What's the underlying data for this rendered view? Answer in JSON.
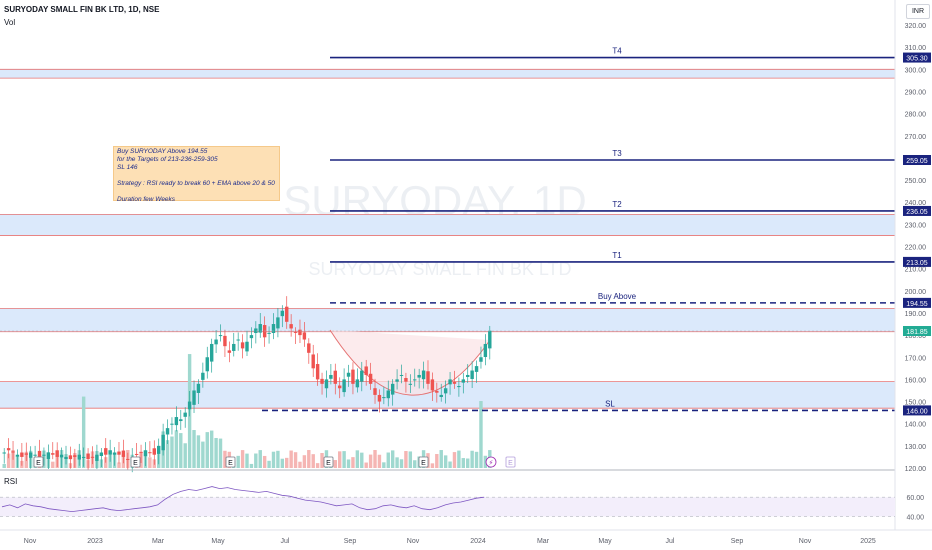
{
  "header": {
    "symbol_title": "SURYODAY SMALL FIN BK LTD, 1D, NSE",
    "volume_label": "Vol",
    "currency": "INR"
  },
  "watermark": {
    "ticker": "SURYODAY, 1D",
    "name": "SURYODAY SMALL FIN BK LTD"
  },
  "note": {
    "text": "Buy SURYODAY Above 194.55\nfor the Targets of 213-236-259-305\nSL 146\n\nStrategy : RSI ready to break 60 + EMA above 20 & 50\n\nDuration few Weeks"
  },
  "colors": {
    "level_line": "#1a237e",
    "zone_fill": "#dbe9fb",
    "zone_border": "#e57373",
    "candle_up": "#26a69a",
    "candle_down": "#ef5350",
    "last_price": "#22ab94",
    "rsi_line": "#7e57c2"
  },
  "levels": [
    {
      "label": "T4",
      "price": 305.3,
      "badge": "305.30"
    },
    {
      "label": "T3",
      "price": 259.05,
      "badge": "259.05"
    },
    {
      "label": "T2",
      "price": 236.05,
      "badge": "236.05"
    },
    {
      "label": "T1",
      "price": 213.05,
      "badge": "213.05"
    },
    {
      "label": "Buy Above",
      "price": 194.55,
      "badge": "194.55",
      "dashed": true
    },
    {
      "label": "SL",
      "price": 146.0,
      "badge": "146.00",
      "dashed": true
    }
  ],
  "last_price": {
    "price": 181.85,
    "badge": "181.85"
  },
  "zones": [
    {
      "top": 300.0,
      "bottom": 296.0
    },
    {
      "top": 234.5,
      "bottom": 225.0
    },
    {
      "top": 192.0,
      "bottom": 181.5
    },
    {
      "top": 159.0,
      "bottom": 147.0
    }
  ],
  "price_axis": {
    "ticks": [
      "320.00",
      "310.00",
      "300.00",
      "290.00",
      "280.00",
      "270.00",
      "260.00",
      "250.00",
      "240.00",
      "230.00",
      "220.00",
      "210.00",
      "200.00",
      "190.00",
      "180.00",
      "170.00",
      "160.00",
      "150.00",
      "140.00",
      "130.00",
      "120.00"
    ]
  },
  "time_axis": {
    "labels": [
      "Nov",
      "2023",
      "Mar",
      "May",
      "Jul",
      "Sep",
      "Nov",
      "2024",
      "Mar",
      "May",
      "Jul",
      "Sep",
      "Nov",
      "2025"
    ]
  },
  "rsi": {
    "label": "RSI",
    "ticks": [
      "60.00",
      "40.00"
    ],
    "values": [
      50,
      52,
      49,
      53,
      51,
      50,
      48,
      47,
      46,
      45,
      46,
      47,
      48,
      49,
      47,
      46,
      47,
      48,
      49,
      50,
      52,
      58,
      63,
      66,
      68,
      67,
      69,
      71,
      69,
      70,
      68,
      67,
      66,
      65,
      66,
      64,
      62,
      61,
      59,
      57,
      56,
      55,
      53,
      51,
      52,
      53,
      49,
      47,
      48,
      51,
      52,
      50,
      49,
      51,
      48,
      47,
      49,
      52,
      54,
      55,
      57,
      59,
      60
    ]
  },
  "event_markers": [
    "E",
    "E",
    "E",
    "E",
    "E",
    "E"
  ],
  "chart_data": {
    "type": "candlestick",
    "title": "SURYODAY SMALL FIN BK LTD, 1D, NSE",
    "ylim": [
      120,
      325
    ],
    "key_levels": {
      "T1": 213.05,
      "T2": 236.05,
      "T3": 259.05,
      "T4": 305.3,
      "Buy Above": 194.55,
      "SL": 146.0,
      "Last": 181.85
    },
    "closes": [
      127,
      128,
      127,
      126,
      125,
      126,
      127,
      126,
      125,
      126,
      127,
      126,
      125,
      126,
      125,
      124,
      125,
      126,
      125,
      124,
      125,
      126,
      127,
      126,
      128,
      127,
      126,
      125,
      124,
      125,
      126,
      127,
      128,
      127,
      126,
      130,
      135,
      138,
      140,
      143,
      142,
      145,
      150,
      155,
      158,
      163,
      170,
      176,
      178,
      180,
      175,
      172,
      176,
      178,
      174,
      177,
      180,
      183,
      185,
      179,
      181,
      185,
      188,
      191,
      186,
      183,
      181,
      180,
      178,
      172,
      165,
      160,
      158,
      160,
      162,
      158,
      156,
      160,
      163,
      158,
      160,
      164,
      162,
      158,
      153,
      150,
      152,
      155,
      158,
      160,
      162,
      159,
      158,
      160,
      162,
      164,
      158,
      155,
      154,
      153,
      156,
      160,
      158,
      157,
      160,
      162,
      164,
      166,
      170,
      176,
      182
    ]
  }
}
